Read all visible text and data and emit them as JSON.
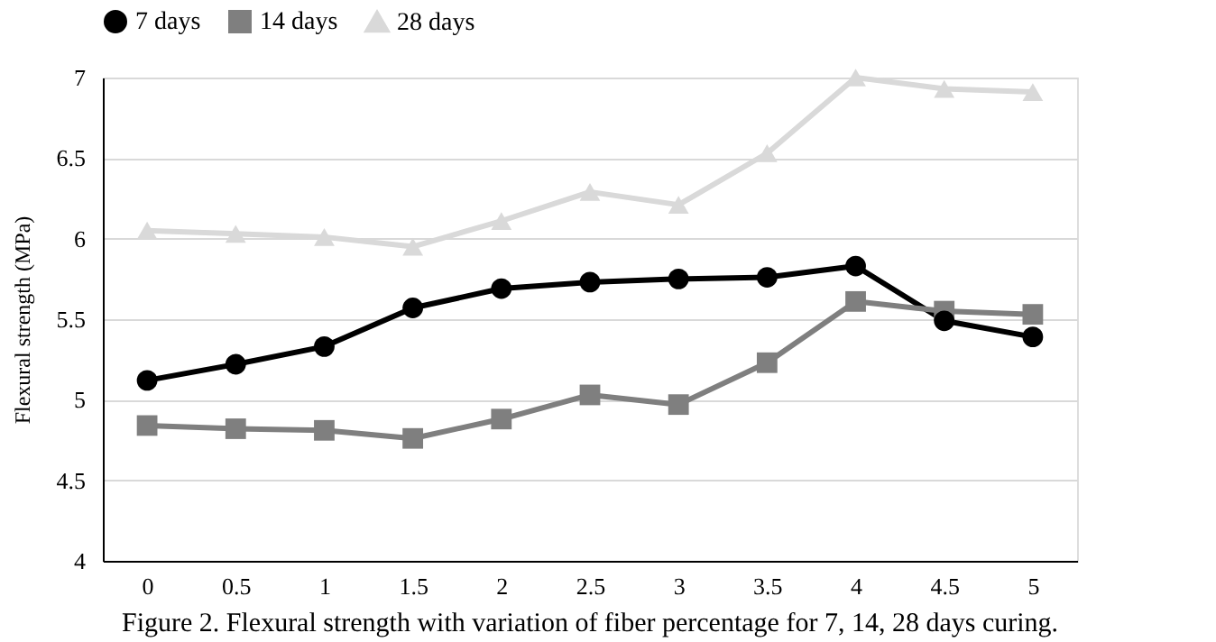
{
  "chart_data": {
    "type": "line",
    "title": "Figure 2. Flexural strength with variation of fiber percentage for 7, 14, 28 days curing.",
    "ylabel": "Flexural  strength (MPa)",
    "categories": [
      "0",
      "0.5",
      "1",
      "1.5",
      "2",
      "2.5",
      "3",
      "3.5",
      "4",
      "4.5",
      "5"
    ],
    "series": [
      {
        "name": "7 days",
        "color": "#000000",
        "marker": "circle",
        "values": [
          5.12,
          5.22,
          5.33,
          5.57,
          5.69,
          5.73,
          5.75,
          5.76,
          5.83,
          5.49,
          5.39
        ]
      },
      {
        "name": "14 days",
        "color": "#7f7f7f",
        "marker": "square",
        "values": [
          4.84,
          4.82,
          4.81,
          4.76,
          4.88,
          5.03,
          4.97,
          5.23,
          5.61,
          5.55,
          5.53
        ]
      },
      {
        "name": "28 days",
        "color": "#d9d9d9",
        "marker": "triangle",
        "values": [
          6.05,
          6.03,
          6.01,
          5.95,
          6.11,
          6.29,
          6.21,
          6.53,
          7.0,
          6.93,
          6.91
        ]
      }
    ],
    "ylim": [
      4,
      7
    ],
    "yticks": [
      4,
      4.5,
      5,
      5.5,
      6,
      6.5,
      7
    ],
    "grid": "y",
    "legend": "top",
    "line_style": "solid"
  }
}
